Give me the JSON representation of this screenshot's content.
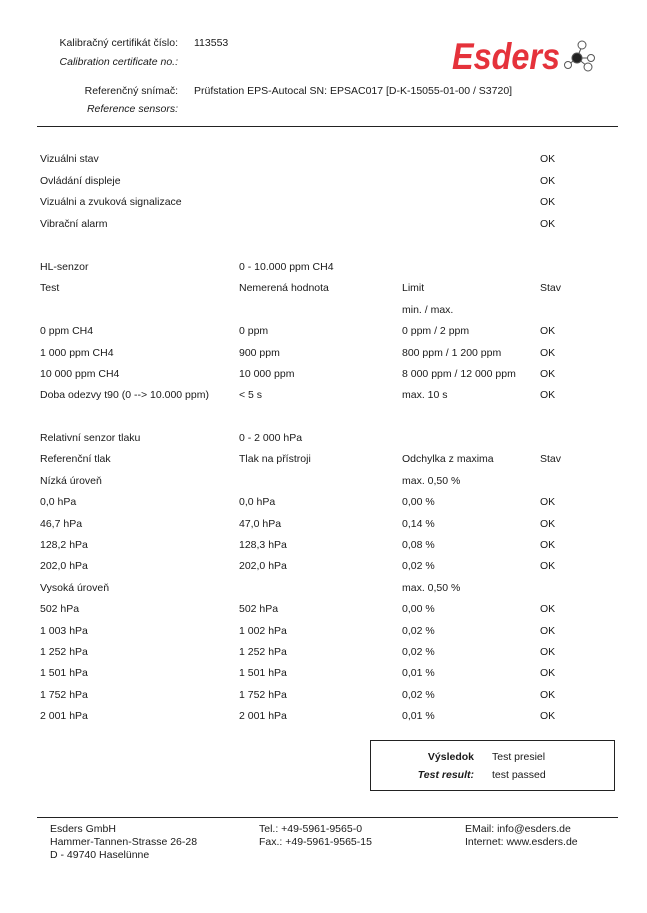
{
  "header": {
    "cert_label": "Kalibračný certifikát číslo:",
    "cert_label_en": "Calibration certificate no.:",
    "cert_number": "113553",
    "ref_label": "Referenčný snímač:",
    "ref_label_en": "Reference sensors:",
    "ref_value": "Prüfstation EPS-Autocal SN: EPSAC017 [D-K-15055-01-00 / S3720]",
    "logo_text": "Esders",
    "logo_color": "#e5323b"
  },
  "checks": [
    [
      "Vizuálni stav",
      "",
      "",
      "OK"
    ],
    [
      "Ovládání displeje",
      "",
      "",
      "OK"
    ],
    [
      "Vizuálni a zvuková signalizace",
      "",
      "",
      "OK"
    ],
    [
      "Vibrační alarm",
      "",
      "",
      "OK"
    ]
  ],
  "hl_sensor": [
    [
      "HL-senzor",
      "0 - 10.000 ppm CH4",
      "",
      ""
    ],
    [
      "Test",
      "Nemerená hodnota",
      "Limit",
      "Stav"
    ],
    [
      "",
      "",
      "min. / max.",
      ""
    ],
    [
      "0 ppm CH4",
      "0 ppm",
      "0 ppm / 2 ppm",
      "OK"
    ],
    [
      "1 000 ppm CH4",
      "900 ppm",
      "800 ppm / 1 200 ppm",
      "OK"
    ],
    [
      "10 000 ppm CH4",
      "10 000 ppm",
      "8 000 ppm / 12 000 ppm",
      "OK"
    ],
    [
      "Doba odezvy t90 (0 --> 10.000 ppm)",
      "< 5 s",
      "max. 10 s",
      "OK"
    ]
  ],
  "pressure": [
    [
      "Relativní senzor tlaku",
      "0 - 2 000 hPa",
      "",
      ""
    ],
    [
      "Referenční tlak",
      "Tlak na přístroji",
      "Odchylka z maxima",
      "Stav"
    ],
    [
      "Nízká úroveň",
      "",
      "max. 0,50 %",
      ""
    ],
    [
      "0,0 hPa",
      "0,0 hPa",
      "0,00 %",
      "OK"
    ],
    [
      "46,7 hPa",
      "47,0 hPa",
      "0,14 %",
      "OK"
    ],
    [
      "128,2 hPa",
      "128,3 hPa",
      "0,08 %",
      "OK"
    ],
    [
      "202,0 hPa",
      "202,0 hPa",
      "0,02 %",
      "OK"
    ],
    [
      "Vysoká úroveň",
      "",
      "max. 0,50 %",
      ""
    ],
    [
      "502 hPa",
      "502 hPa",
      "0,00 %",
      "OK"
    ],
    [
      "1 003 hPa",
      "1 002 hPa",
      "0,02 %",
      "OK"
    ],
    [
      "1 252 hPa",
      "1 252 hPa",
      "0,02 %",
      "OK"
    ],
    [
      "1 501 hPa",
      "1 501 hPa",
      "0,01 %",
      "OK"
    ],
    [
      "1 752 hPa",
      "1 752 hPa",
      "0,02 %",
      "OK"
    ],
    [
      "2 001 hPa",
      "2 001 hPa",
      "0,01 %",
      "OK"
    ]
  ],
  "result": {
    "label": "Výsledok",
    "label_en": "Test result:",
    "value": "Test presiel",
    "value_en": "test passed"
  },
  "footer": {
    "company": "Esders GmbH",
    "street": "Hammer-Tannen-Strasse 26-28",
    "city": "D - 49740 Haselünne",
    "tel": "Tel.: +49-5961-9565-0",
    "fax": "Fax.: +49-5961-9565-15",
    "email": "EMail: info@esders.de",
    "web": "Internet: www.esders.de"
  }
}
